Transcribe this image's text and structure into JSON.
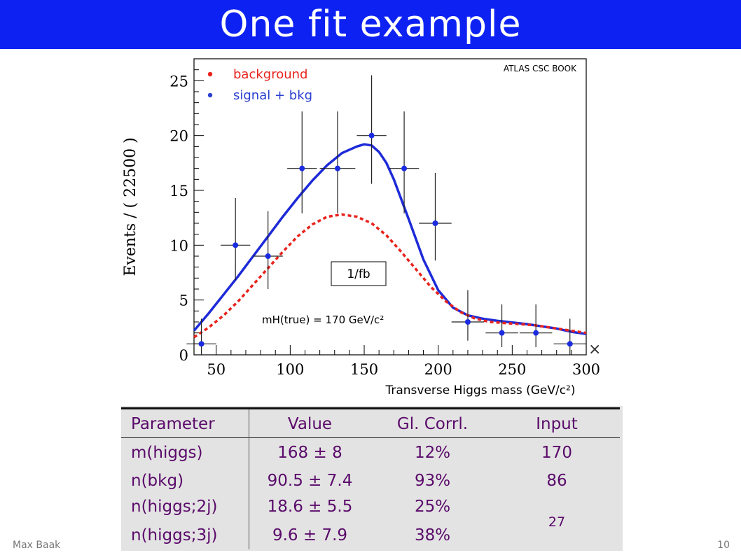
{
  "slide": {
    "title": "One fit example",
    "author": "Max Baak",
    "page_number": "10"
  },
  "chart_data": {
    "type": "scatter",
    "xlabel": "Transverse Higgs mass (GeV/c²)",
    "ylabel": "Events / ( 22500 )",
    "xlim": [
      35,
      300
    ],
    "ylim": [
      0,
      27
    ],
    "x_ticks": [
      50,
      100,
      150,
      200,
      250,
      300
    ],
    "y_ticks": [
      0,
      5,
      10,
      15,
      20,
      25
    ],
    "corner_label": "ATLAS CSC BOOK",
    "luminosity_label": "1/fb",
    "mass_label": "mH(true) = 170 GeV/c²",
    "legend": [
      {
        "label": "background",
        "color": "#e8231d"
      },
      {
        "label": "signal + bkg",
        "color": "#2b3fd0"
      }
    ],
    "points": [
      {
        "x": 40,
        "y": 1,
        "yerr_up": 2.3,
        "yerr_down": 1,
        "xerr": 10
      },
      {
        "x": 63,
        "y": 10,
        "yerr_up": 4.3,
        "yerr_down": 3.2,
        "xerr": 10
      },
      {
        "x": 85,
        "y": 9,
        "yerr_up": 4.1,
        "yerr_down": 3.0,
        "xerr": 10
      },
      {
        "x": 108,
        "y": 17,
        "yerr_up": 5.2,
        "yerr_down": 4.1,
        "xerr": 10
      },
      {
        "x": 132,
        "y": 17,
        "yerr_up": 5.2,
        "yerr_down": 4.1,
        "xerr": 12
      },
      {
        "x": 155,
        "y": 20,
        "yerr_up": 5.5,
        "yerr_down": 4.4,
        "xerr": 10
      },
      {
        "x": 177,
        "y": 17,
        "yerr_up": 5.2,
        "yerr_down": 4.1,
        "xerr": 10
      },
      {
        "x": 198,
        "y": 12,
        "yerr_up": 4.6,
        "yerr_down": 3.4,
        "xerr": 11
      },
      {
        "x": 220,
        "y": 3,
        "yerr_up": 2.9,
        "yerr_down": 1.7,
        "xerr": 11
      },
      {
        "x": 243,
        "y": 2,
        "yerr_up": 2.6,
        "yerr_down": 1.3,
        "xerr": 11
      },
      {
        "x": 266,
        "y": 2,
        "yerr_up": 2.6,
        "yerr_down": 1.3,
        "xerr": 11
      },
      {
        "x": 289,
        "y": 1,
        "yerr_up": 2.3,
        "yerr_down": 1,
        "xerr": 11
      }
    ],
    "curves": [
      {
        "name": "signal + bkg",
        "style": "solid",
        "color": "#1d2ad8",
        "x": [
          35,
          45,
          55,
          65,
          75,
          85,
          95,
          105,
          115,
          125,
          135,
          145,
          150,
          155,
          160,
          165,
          170,
          180,
          190,
          200,
          210,
          220,
          230,
          240,
          250,
          260,
          270,
          280,
          290,
          300
        ],
        "y": [
          2.2,
          3.8,
          5.5,
          7.2,
          9.0,
          10.8,
          12.6,
          14.3,
          15.9,
          17.3,
          18.4,
          19.0,
          19.2,
          19.1,
          18.5,
          17.5,
          16.0,
          12.4,
          8.7,
          5.9,
          4.3,
          3.6,
          3.3,
          3.1,
          2.95,
          2.8,
          2.6,
          2.4,
          2.1,
          1.9
        ]
      },
      {
        "name": "background",
        "style": "dashed",
        "color": "#e8231d",
        "x": [
          35,
          45,
          55,
          65,
          75,
          85,
          95,
          105,
          115,
          125,
          135,
          145,
          155,
          165,
          175,
          185,
          195,
          205,
          215,
          225,
          235,
          245,
          255,
          265,
          275,
          285,
          300
        ],
        "y": [
          1.6,
          2.5,
          3.6,
          4.9,
          6.4,
          7.9,
          9.4,
          10.8,
          11.9,
          12.6,
          12.8,
          12.6,
          12.0,
          10.9,
          9.4,
          7.8,
          6.2,
          4.9,
          3.9,
          3.3,
          3.0,
          2.9,
          2.8,
          2.7,
          2.5,
          2.3,
          2.0
        ]
      }
    ]
  },
  "table": {
    "headers": [
      "Parameter",
      "Value",
      "Gl. Corrl.",
      "Input"
    ],
    "rows": [
      {
        "param": "m(higgs)",
        "value": "168 ± 8",
        "corr": "12%",
        "input": "170"
      },
      {
        "param": "n(bkg)",
        "value": "90.5 ± 7.4",
        "corr": "93%",
        "input": "86"
      },
      {
        "param": "n(higgs;2j)",
        "value": "18.6 ± 5.5",
        "corr": "25%",
        "input": ""
      },
      {
        "param": "n(higgs;3j)",
        "value": "9.6 ± 7.9",
        "corr": "38%",
        "input": ""
      }
    ],
    "merged_input": "27"
  }
}
